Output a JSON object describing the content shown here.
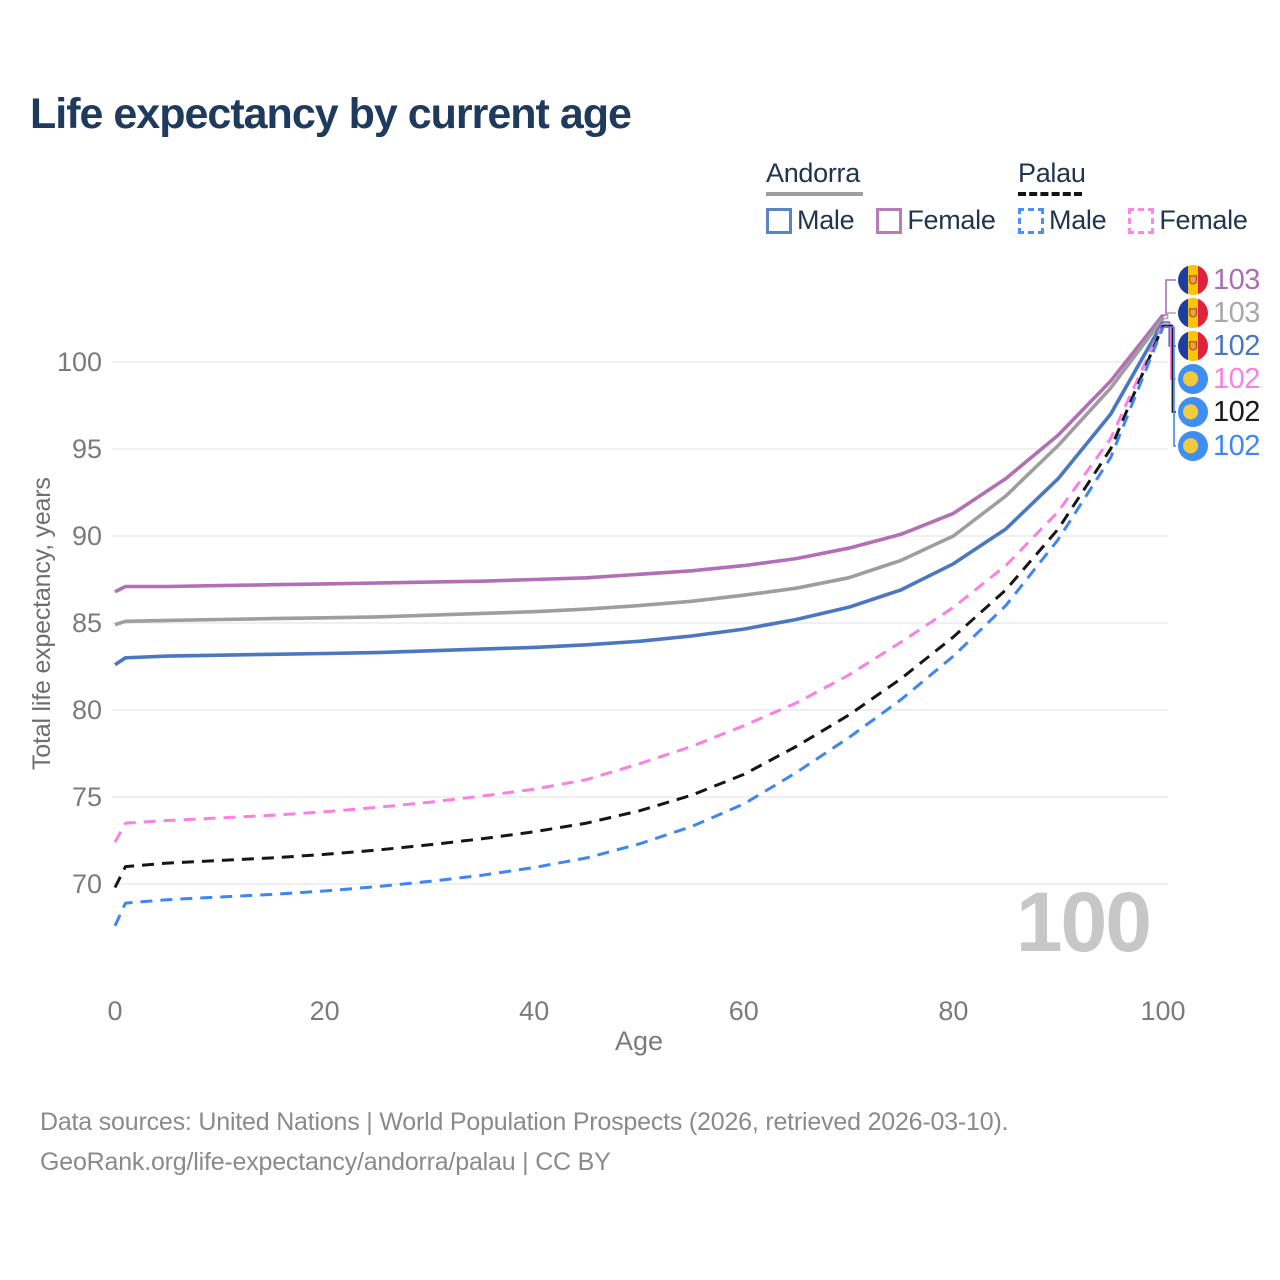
{
  "title": "Life expectancy by current age",
  "legend": {
    "groups": [
      {
        "country": "Andorra",
        "line_style": "solid",
        "items": [
          {
            "label": "Male",
            "color": "#5b84c4",
            "line_style": "solid"
          },
          {
            "label": "Female",
            "color": "#b87cba",
            "line_style": "solid"
          }
        ]
      },
      {
        "country": "Palau",
        "line_style": "dashed",
        "items": [
          {
            "label": "Male",
            "color": "#4a90f5",
            "line_style": "dashed"
          },
          {
            "label": "Female",
            "color": "#fd87e4",
            "line_style": "dashed"
          }
        ]
      }
    ]
  },
  "chart_data": {
    "type": "line",
    "title": "Life expectancy by current age",
    "xlabel": "Age",
    "ylabel": "Total life expectancy, years",
    "x_ticks": [
      0,
      20,
      40,
      60,
      80,
      100
    ],
    "y_ticks": [
      70,
      75,
      80,
      85,
      90,
      95,
      100
    ],
    "xlim": [
      0,
      100
    ],
    "ylim": [
      65,
      104.5
    ],
    "grid": true,
    "age_cursor": "100",
    "ages": [
      0,
      1,
      5,
      10,
      15,
      20,
      25,
      30,
      35,
      40,
      45,
      50,
      55,
      60,
      65,
      70,
      75,
      80,
      85,
      90,
      95,
      100
    ],
    "series": [
      {
        "id": "andorra-female",
        "country": "Andorra",
        "sex": "Female",
        "style": "solid",
        "color": "#b26fb5",
        "label_color": "#ad6db3",
        "end_label": "103",
        "values": [
          86.8,
          87.1,
          87.1,
          87.15,
          87.2,
          87.25,
          87.3,
          87.35,
          87.4,
          87.5,
          87.6,
          87.8,
          88.0,
          88.3,
          88.7,
          89.3,
          90.1,
          91.3,
          93.3,
          95.8,
          98.9,
          102.7
        ]
      },
      {
        "id": "andorra-total",
        "country": "Andorra",
        "sex": "Total",
        "style": "solid",
        "color": "#9e9e9e",
        "label_color": "#a8a8a8",
        "end_label": "103",
        "values": [
          84.9,
          85.1,
          85.15,
          85.2,
          85.25,
          85.3,
          85.35,
          85.45,
          85.55,
          85.65,
          85.8,
          86.0,
          86.25,
          86.6,
          87.0,
          87.6,
          88.6,
          90.0,
          92.3,
          95.2,
          98.5,
          102.5
        ]
      },
      {
        "id": "andorra-male",
        "country": "Andorra",
        "sex": "Male",
        "style": "solid",
        "color": "#4b77c1",
        "label_color": "#4b77c1",
        "end_label": "102",
        "values": [
          82.6,
          83.0,
          83.1,
          83.15,
          83.2,
          83.25,
          83.3,
          83.4,
          83.5,
          83.6,
          83.75,
          83.95,
          84.25,
          84.65,
          85.2,
          85.9,
          86.9,
          88.4,
          90.4,
          93.3,
          97.0,
          102.3
        ]
      },
      {
        "id": "palau-female",
        "country": "Palau",
        "sex": "Female",
        "style": "dashed",
        "color": "#fb80e3",
        "label_color": "#fb80e3",
        "end_label": "102",
        "values": [
          72.4,
          73.5,
          73.65,
          73.8,
          73.95,
          74.15,
          74.4,
          74.7,
          75.05,
          75.45,
          76.0,
          76.9,
          77.9,
          79.1,
          80.4,
          82.0,
          83.9,
          85.9,
          88.3,
          91.4,
          95.6,
          102.2
        ]
      },
      {
        "id": "palau-total",
        "country": "Palau",
        "sex": "Total",
        "style": "dashed",
        "color": "#161616",
        "label_color": "#1a1a1a",
        "end_label": "102",
        "values": [
          69.8,
          71.0,
          71.2,
          71.35,
          71.5,
          71.7,
          71.95,
          72.25,
          72.6,
          73.0,
          73.5,
          74.2,
          75.1,
          76.3,
          77.9,
          79.7,
          81.8,
          84.2,
          86.9,
          90.4,
          95.0,
          102.1
        ]
      },
      {
        "id": "palau-male",
        "country": "Palau",
        "sex": "Male",
        "style": "dashed",
        "color": "#3e86f4",
        "label_color": "#3e86f4",
        "end_label": "102",
        "values": [
          67.6,
          68.9,
          69.1,
          69.25,
          69.4,
          69.6,
          69.85,
          70.15,
          70.5,
          70.95,
          71.5,
          72.3,
          73.3,
          74.6,
          76.4,
          78.4,
          80.6,
          83.1,
          86.0,
          89.8,
          94.5,
          102.0
        ]
      }
    ]
  },
  "footer": {
    "line1": "Data sources: United Nations | World Population Prospects (2026, retrieved 2026-03-10).",
    "line2": "GeoRank.org/life-expectancy/andorra/palau | CC BY"
  }
}
